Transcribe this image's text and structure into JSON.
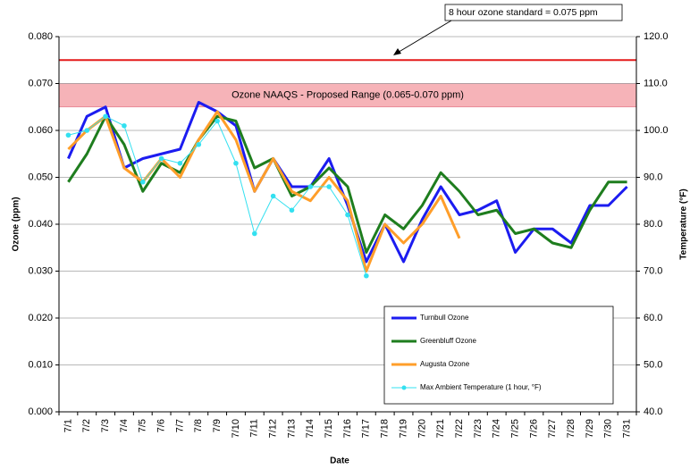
{
  "chart_data": {
    "type": "line",
    "x_label": "Date",
    "y_label": "Ozone (ppm)",
    "y2_label": "Temperature (°F)",
    "categories": [
      "7/1",
      "7/2",
      "7/3",
      "7/4",
      "7/5",
      "7/6",
      "7/7",
      "7/8",
      "7/9",
      "7/10",
      "7/11",
      "7/12",
      "7/13",
      "7/14",
      "7/15",
      "7/16",
      "7/17",
      "7/18",
      "7/19",
      "7/20",
      "7/21",
      "7/22",
      "7/23",
      "7/24",
      "7/25",
      "7/26",
      "7/27",
      "7/28",
      "7/29",
      "7/30",
      "7/31"
    ],
    "series": [
      {
        "name": "Turnbull Ozone",
        "color": "#1c1cf0",
        "width": 3,
        "axis": "y",
        "values": [
          0.054,
          0.063,
          0.065,
          0.052,
          0.054,
          0.055,
          0.056,
          0.066,
          0.064,
          0.061,
          0.047,
          0.054,
          0.048,
          0.048,
          0.054,
          0.044,
          0.032,
          0.04,
          0.032,
          0.041,
          0.048,
          0.042,
          0.043,
          0.045,
          0.034,
          0.039,
          0.039,
          0.036,
          0.044,
          0.044,
          0.048
        ]
      },
      {
        "name": "Greenbluff Ozone",
        "color": "#1e7d1e",
        "width": 3,
        "axis": "y",
        "values": [
          0.049,
          0.055,
          0.063,
          0.057,
          0.047,
          0.053,
          0.051,
          0.058,
          0.063,
          0.062,
          0.052,
          0.054,
          0.046,
          0.048,
          0.052,
          0.048,
          0.034,
          0.042,
          0.039,
          0.044,
          0.051,
          0.047,
          0.042,
          0.043,
          0.038,
          0.039,
          0.036,
          0.035,
          0.043,
          0.049,
          0.049
        ]
      },
      {
        "name": "Augusta Ozone",
        "color": "#ff9e2a",
        "width": 3,
        "axis": "y",
        "values": [
          0.056,
          0.06,
          0.063,
          0.052,
          0.049,
          0.054,
          0.05,
          0.058,
          0.064,
          0.058,
          0.047,
          0.054,
          0.047,
          0.045,
          0.05,
          0.045,
          0.03,
          0.04,
          0.036,
          0.04,
          0.046,
          0.037,
          null,
          null,
          null,
          null,
          null,
          null,
          null,
          null,
          null
        ]
      },
      {
        "name": "Max Ambient Temperature (1 hour, °F)",
        "color": "#33e0f0",
        "width": 1,
        "marker": "circle",
        "axis": "y2",
        "values": [
          99,
          100,
          103,
          101,
          89,
          94,
          93,
          97,
          102,
          93,
          78,
          86,
          83,
          88,
          88,
          82,
          69,
          null,
          null,
          null,
          null,
          null,
          null,
          null,
          null,
          null,
          null,
          null,
          null,
          null,
          null
        ]
      }
    ],
    "ylim": [
      0,
      0.08
    ],
    "yticks": [
      {
        "value": 0,
        "label": "0.000"
      },
      {
        "value": 0.01,
        "label": "0.010"
      },
      {
        "value": 0.02,
        "label": "0.020"
      },
      {
        "value": 0.03,
        "label": "0.030"
      },
      {
        "value": 0.04,
        "label": "0.040"
      },
      {
        "value": 0.05,
        "label": "0.050"
      },
      {
        "value": 0.06,
        "label": "0.060"
      },
      {
        "value": 0.07,
        "label": "0.070"
      },
      {
        "value": 0.08,
        "label": "0.080"
      }
    ],
    "y2lim": [
      40,
      120
    ],
    "y2ticks": [
      {
        "value": 40,
        "label": "40.0"
      },
      {
        "value": 50,
        "label": "50.0"
      },
      {
        "value": 60,
        "label": "60.0"
      },
      {
        "value": 70,
        "label": "70.0"
      },
      {
        "value": 80,
        "label": "80.0"
      },
      {
        "value": 90,
        "label": "90.0"
      },
      {
        "value": 100,
        "label": "100.0"
      },
      {
        "value": 110,
        "label": "110.0"
      },
      {
        "value": 120,
        "label": "120.0"
      }
    ],
    "grid": true,
    "legend": "lower right",
    "reference_line": {
      "value": 0.075,
      "color": "#e41a1a",
      "label": "8 hour ozone standard = 0.075 ppm"
    },
    "band": {
      "range": [
        0.065,
        0.07
      ],
      "color": "#f6b3b8",
      "label": "Ozone NAAQS - Proposed Range (0.065-0.070 ppm)"
    }
  }
}
